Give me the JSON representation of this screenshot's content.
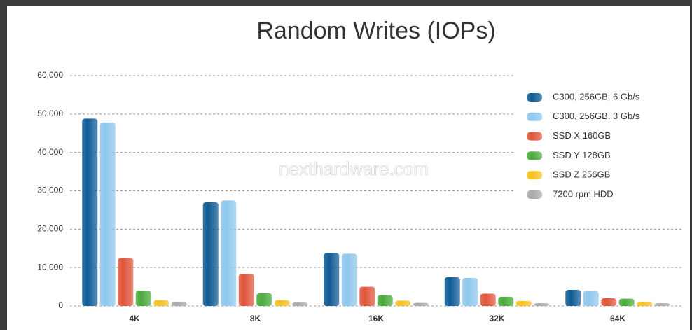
{
  "chart_data": {
    "type": "bar",
    "title": "Random Writes (IOPs)",
    "watermark": "nexthardware.com",
    "categories": [
      "4K",
      "8K",
      "16K",
      "32K",
      "64K"
    ],
    "series": [
      {
        "name": "C300, 256GB, 6 Gb/s",
        "color": "#0f5b96",
        "values": [
          48800,
          27000,
          13800,
          7500,
          4200
        ]
      },
      {
        "name": "C300, 256GB, 3 Gb/s",
        "color": "#8ec7ee",
        "values": [
          47800,
          27500,
          13600,
          7300,
          3900
        ]
      },
      {
        "name": "SSD X 160GB",
        "color": "#e0553a",
        "values": [
          12500,
          8300,
          5000,
          3200,
          2000
        ]
      },
      {
        "name": "SSD Y 128GB",
        "color": "#4aab3c",
        "values": [
          4000,
          3300,
          2800,
          2400,
          1900
        ]
      },
      {
        "name": "SSD Z 256GB",
        "color": "#f5c11d",
        "values": [
          1500,
          1500,
          1400,
          1300,
          1000
        ]
      },
      {
        "name": "7200 rpm HDD",
        "color": "#a9a9a9",
        "values": [
          1000,
          900,
          800,
          700,
          700
        ]
      }
    ],
    "ylim": [
      0,
      60000
    ],
    "yticks": [
      0,
      {
        "value": 10000,
        "label": "10,000"
      },
      {
        "value": 20000,
        "label": "20,000"
      },
      {
        "value": 30000,
        "label": "30,000"
      },
      {
        "value": 40000,
        "label": "40,000"
      },
      {
        "value": 50000,
        "label": "50,000"
      },
      {
        "value": 60000,
        "label": "60,000"
      }
    ],
    "grid": true,
    "legend": "top-right"
  }
}
